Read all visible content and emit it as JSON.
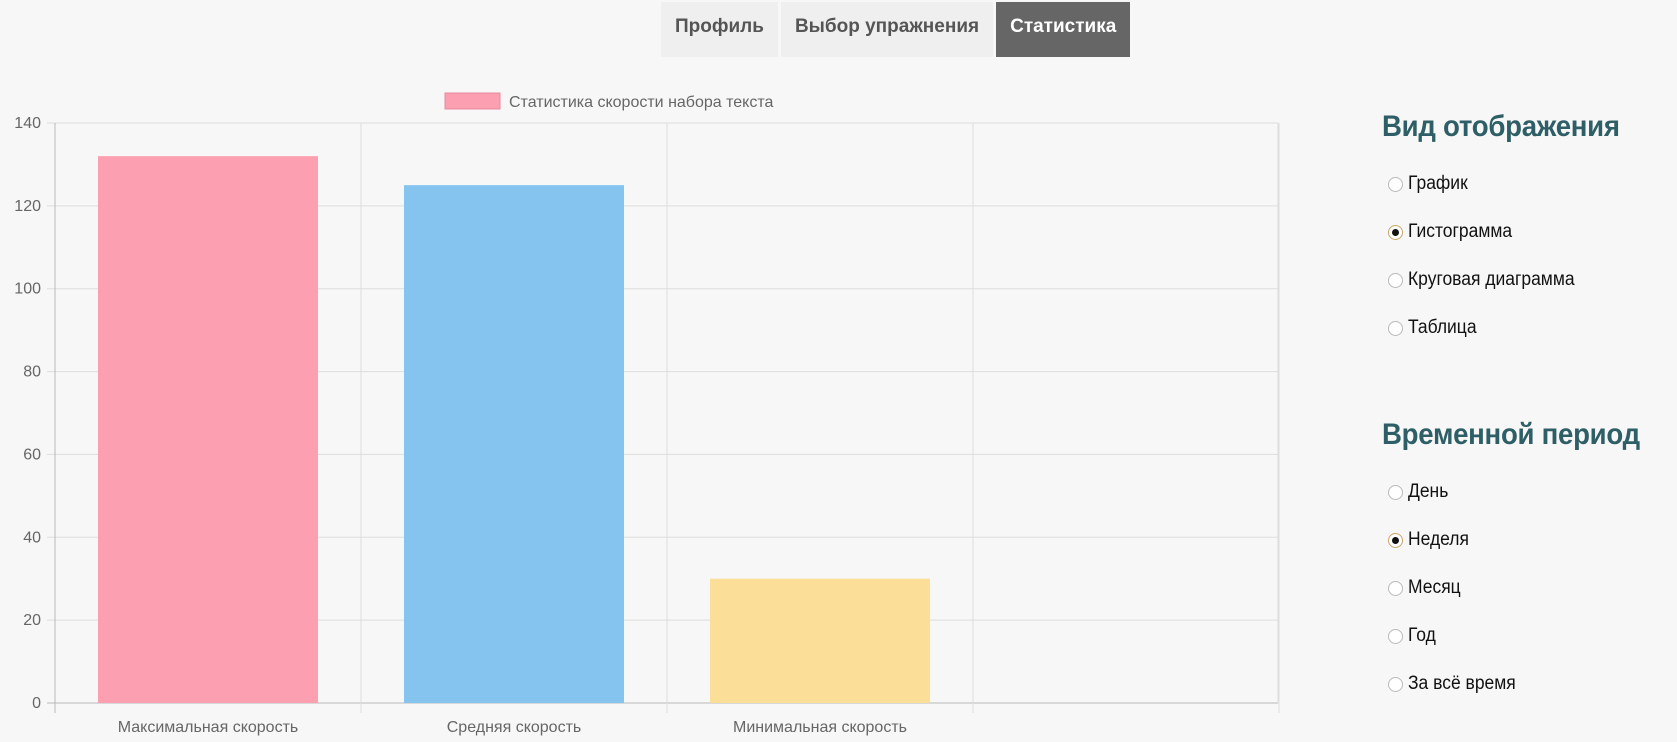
{
  "tabs": [
    {
      "label": "Профиль",
      "active": false
    },
    {
      "label": "Выбор упражнения",
      "active": false
    },
    {
      "label": "Статистика",
      "active": true
    }
  ],
  "display_panel": {
    "title": "Вид отображения",
    "options": [
      {
        "label": "График",
        "checked": false
      },
      {
        "label": "Гистограмма",
        "checked": true
      },
      {
        "label": "Круговая диаграмма",
        "checked": false
      },
      {
        "label": "Таблица",
        "checked": false
      }
    ]
  },
  "period_panel": {
    "title": "Временной период",
    "options": [
      {
        "label": "День",
        "checked": false
      },
      {
        "label": "Неделя",
        "checked": true
      },
      {
        "label": "Месяц",
        "checked": false
      },
      {
        "label": "Год",
        "checked": false
      },
      {
        "label": "За всё время",
        "checked": false
      }
    ]
  },
  "chart_data": {
    "type": "bar",
    "categories": [
      "Максимальная скорость",
      "Средняя скорость",
      "Минимальная скорость"
    ],
    "values": [
      132,
      125,
      30
    ],
    "colors": [
      "#fc9fb1",
      "#84c4ef",
      "#fbdf98"
    ],
    "legend": "Статистика скорости набора текста",
    "legend_color": "#fc9fb1",
    "legend_placement": "top",
    "ylim": [
      0,
      140
    ],
    "yticks": [
      "0",
      "20",
      "40",
      "60",
      "80",
      "100",
      "120",
      "140"
    ],
    "grid": true,
    "title": "",
    "xlabel": "",
    "ylabel": ""
  }
}
